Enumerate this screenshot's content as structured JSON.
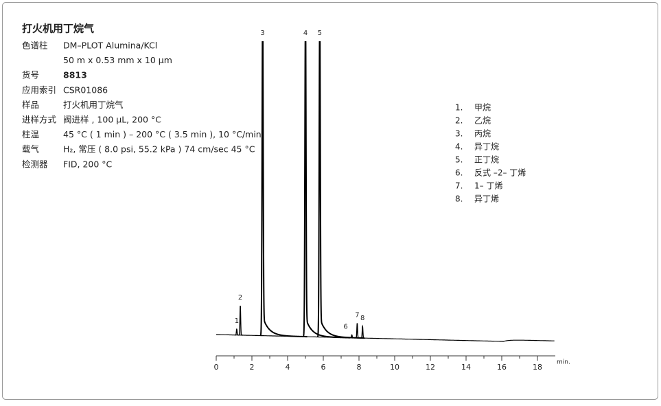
{
  "header": {
    "title": "打火机用丁烷气"
  },
  "info": [
    {
      "label": "色谱柱",
      "value": "DM–PLOT Alumina/KCl"
    },
    {
      "value": "50 m x 0.53 mm x 10 μm"
    },
    {
      "label": "货号",
      "value": "8813"
    },
    {
      "label": "应用索引",
      "value": "CSR01086"
    },
    {
      "label": "样品",
      "value": "打火机用丁烷气"
    },
    {
      "label": "进样方式",
      "value": "阀进样 , 100 μL, 200 °C"
    },
    {
      "label": "柱温",
      "value": "45 °C ( 1 min ) – 200 °C ( 3.5 min ), 10 °C/min"
    },
    {
      "label": "载气",
      "value": "H₂, 常压 ( 8.0 psi, 55.2 kPa ) 74 cm/sec 45 °C"
    },
    {
      "label": "检测器",
      "value": "FID, 200 °C"
    }
  ],
  "chart_data": {
    "type": "chromatogram",
    "xlabel": "min.",
    "xlim": [
      0,
      19
    ],
    "xticks": [
      0,
      2,
      4,
      6,
      8,
      10,
      12,
      14,
      16,
      18
    ],
    "xminorticks": [
      1,
      3,
      5,
      7,
      9,
      11,
      13,
      15,
      17
    ],
    "color": "#000000",
    "peaks": [
      {
        "label": "1",
        "time": 1.15,
        "height": 2
      },
      {
        "label": "2",
        "time": 1.35,
        "height": 10
      },
      {
        "label": "3",
        "time": 2.6,
        "height": 100
      },
      {
        "label": "4",
        "time": 5.0,
        "height": 100
      },
      {
        "label": "5",
        "time": 5.8,
        "height": 100
      },
      {
        "label": "6",
        "time": 7.6,
        "height": 1
      },
      {
        "label": "7",
        "time": 7.9,
        "height": 5
      },
      {
        "label": "8",
        "time": 8.2,
        "height": 4
      }
    ],
    "legend": [
      {
        "number": "1.",
        "name": "甲烷"
      },
      {
        "number": "2.",
        "name": "乙烷"
      },
      {
        "number": "3.",
        "name": "丙烷"
      },
      {
        "number": "4.",
        "name": "异丁烷"
      },
      {
        "number": "5.",
        "name": "正丁烷"
      },
      {
        "number": "6.",
        "name": "反式 –2– 丁烯"
      },
      {
        "number": "7.",
        "name": "1– 丁烯"
      },
      {
        "number": "8.",
        "name": "异丁烯"
      }
    ]
  }
}
